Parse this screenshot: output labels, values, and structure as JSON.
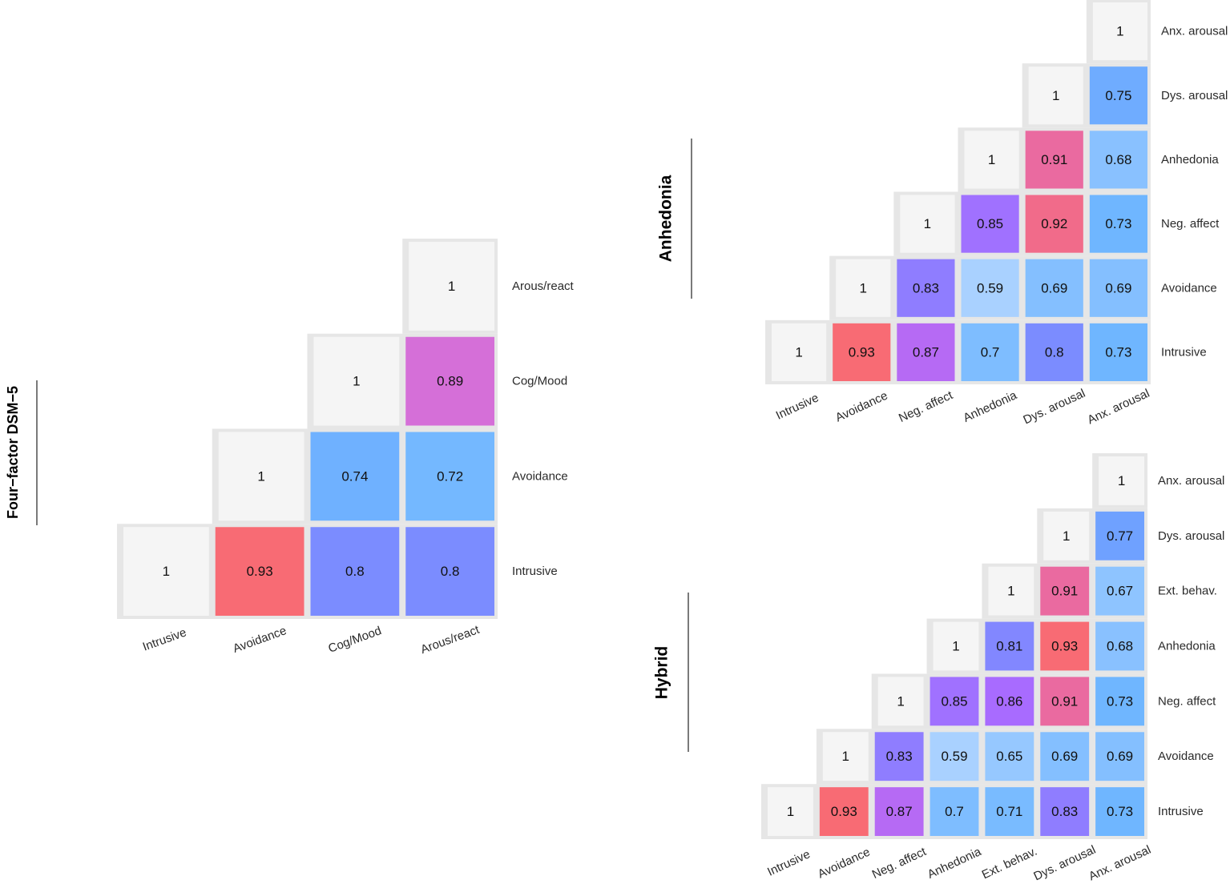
{
  "colors": {
    "frame": "#e6e6e6",
    "diagonal": "#f5f5f5",
    "low": "#b6d8ff",
    "mid_blue": "#6fb6ff",
    "blue_violet": "#7b8cff",
    "violet": "#a86bff",
    "magenta": "#d56fd8",
    "pink": "#ea6aa0",
    "red": "#f86b74"
  },
  "chart_data": [
    {
      "type": "heatmap",
      "title": "Four−factor DSM−5",
      "factors": [
        "Intrusive",
        "Avoidance",
        "Cog/Mood",
        "Arous/react"
      ],
      "matrix": [
        [
          1,
          0.93,
          0.8,
          0.8
        ],
        [
          null,
          1,
          0.74,
          0.72
        ],
        [
          null,
          null,
          1,
          0.89
        ],
        [
          null,
          null,
          null,
          1
        ]
      ]
    },
    {
      "type": "heatmap",
      "title": "Anhedonia",
      "factors": [
        "Intrusive",
        "Avoidance",
        "Neg. affect",
        "Anhedonia",
        "Dys. arousal",
        "Anx. arousal"
      ],
      "matrix": [
        [
          1,
          0.93,
          0.87,
          0.7,
          0.8,
          0.73
        ],
        [
          null,
          1,
          0.83,
          0.59,
          0.69,
          0.69
        ],
        [
          null,
          null,
          1,
          0.85,
          0.92,
          0.73
        ],
        [
          null,
          null,
          null,
          1,
          0.91,
          0.68
        ],
        [
          null,
          null,
          null,
          null,
          1,
          0.75
        ],
        [
          null,
          null,
          null,
          null,
          null,
          1
        ]
      ]
    },
    {
      "type": "heatmap",
      "title": "Hybrid",
      "factors": [
        "Intrusive",
        "Avoidance",
        "Neg. affect",
        "Anhedonia",
        "Ext. behav.",
        "Dys. arousal",
        "Anx. arousal"
      ],
      "matrix": [
        [
          1,
          0.93,
          0.87,
          0.7,
          0.71,
          0.83,
          0.73
        ],
        [
          null,
          1,
          0.83,
          0.59,
          0.65,
          0.69,
          0.69
        ],
        [
          null,
          null,
          1,
          0.85,
          0.86,
          0.91,
          0.73
        ],
        [
          null,
          null,
          null,
          1,
          0.81,
          0.93,
          0.68
        ],
        [
          null,
          null,
          null,
          null,
          1,
          0.91,
          0.67
        ],
        [
          null,
          null,
          null,
          null,
          null,
          1,
          0.77
        ],
        [
          null,
          null,
          null,
          null,
          null,
          null,
          1
        ]
      ]
    }
  ]
}
